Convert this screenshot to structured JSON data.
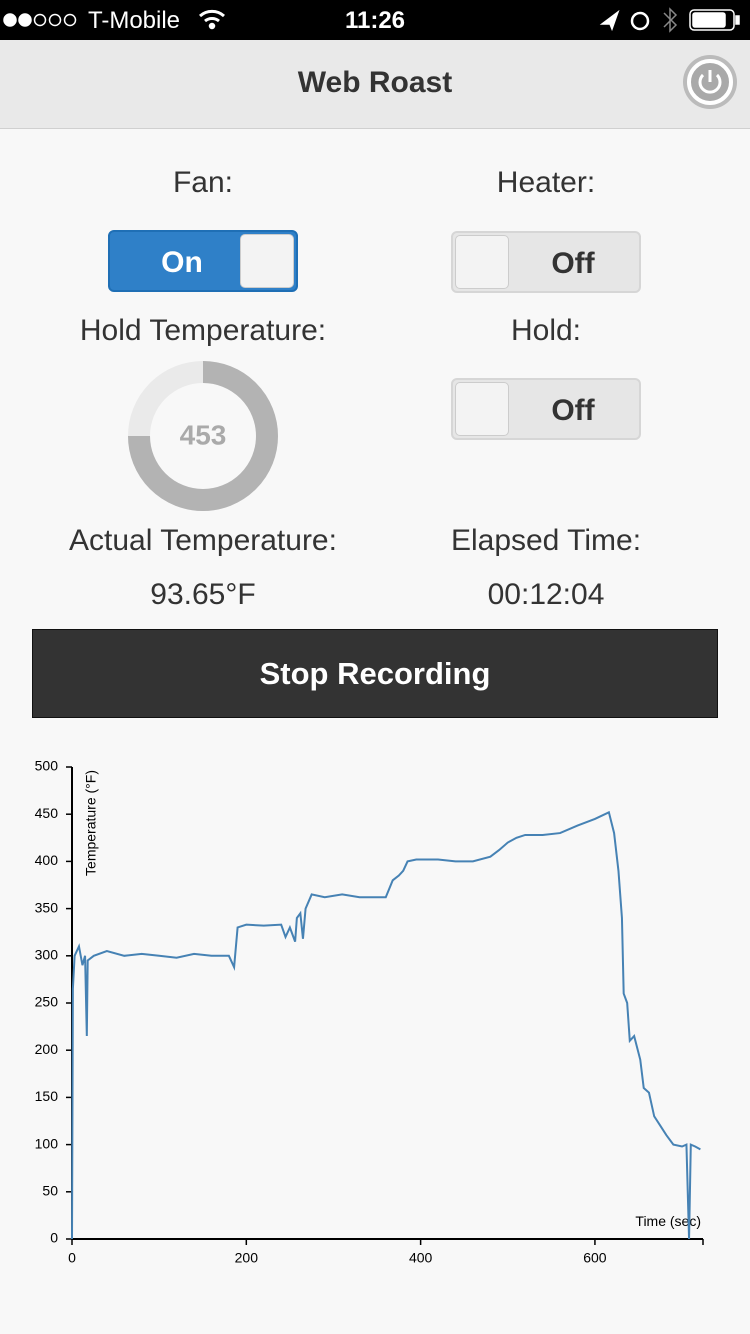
{
  "status_bar": {
    "carrier": "T-Mobile",
    "time": "11:26"
  },
  "header": {
    "title": "Web Roast"
  },
  "controls": {
    "fan": {
      "label": "Fan:",
      "state": "On"
    },
    "heater": {
      "label": "Heater:",
      "state": "Off"
    },
    "hold_temperature": {
      "label": "Hold Temperature:",
      "value": "453"
    },
    "hold": {
      "label": "Hold:",
      "state": "Off"
    },
    "actual_temperature": {
      "label": "Actual Temperature:",
      "value": "93.65°F"
    },
    "elapsed_time": {
      "label": "Elapsed Time:",
      "value": "00:12:04"
    },
    "button": "Stop Recording"
  },
  "chart_data": {
    "type": "line",
    "x_label": "Time (sec)",
    "y_label": "Temperature (°F)",
    "color": "#4682b4",
    "x": [
      0,
      1,
      3,
      8,
      12,
      15,
      17,
      18,
      25,
      40,
      60,
      80,
      100,
      120,
      140,
      160,
      180,
      186,
      190,
      200,
      220,
      240,
      245,
      250,
      256,
      258,
      262,
      265,
      268,
      275,
      290,
      310,
      330,
      350,
      360,
      368,
      375,
      380,
      385,
      395,
      420,
      440,
      460,
      480,
      490,
      500,
      510,
      520,
      540,
      560,
      580,
      600,
      616,
      622,
      627,
      631,
      633,
      637,
      640,
      645,
      652,
      656,
      662,
      668,
      675,
      682,
      690,
      700,
      705,
      708,
      710,
      715,
      721
    ],
    "values": [
      0,
      265,
      300,
      310,
      290,
      300,
      215,
      295,
      300,
      305,
      300,
      302,
      300,
      298,
      302,
      300,
      300,
      288,
      330,
      333,
      332,
      333,
      320,
      330,
      315,
      340,
      345,
      318,
      350,
      365,
      362,
      365,
      362,
      362,
      362,
      380,
      385,
      390,
      400,
      402,
      402,
      400,
      400,
      405,
      412,
      420,
      425,
      428,
      428,
      430,
      438,
      445,
      452,
      430,
      390,
      340,
      260,
      250,
      210,
      215,
      190,
      160,
      155,
      130,
      120,
      110,
      100,
      98,
      100,
      0,
      100,
      98,
      95
    ],
    "xlim": [
      0,
      724
    ],
    "ylim": [
      0,
      500
    ],
    "xticks": [
      0,
      200,
      400,
      600
    ],
    "yticks": [
      0,
      50,
      100,
      150,
      200,
      250,
      300,
      350,
      400,
      450,
      500
    ]
  }
}
